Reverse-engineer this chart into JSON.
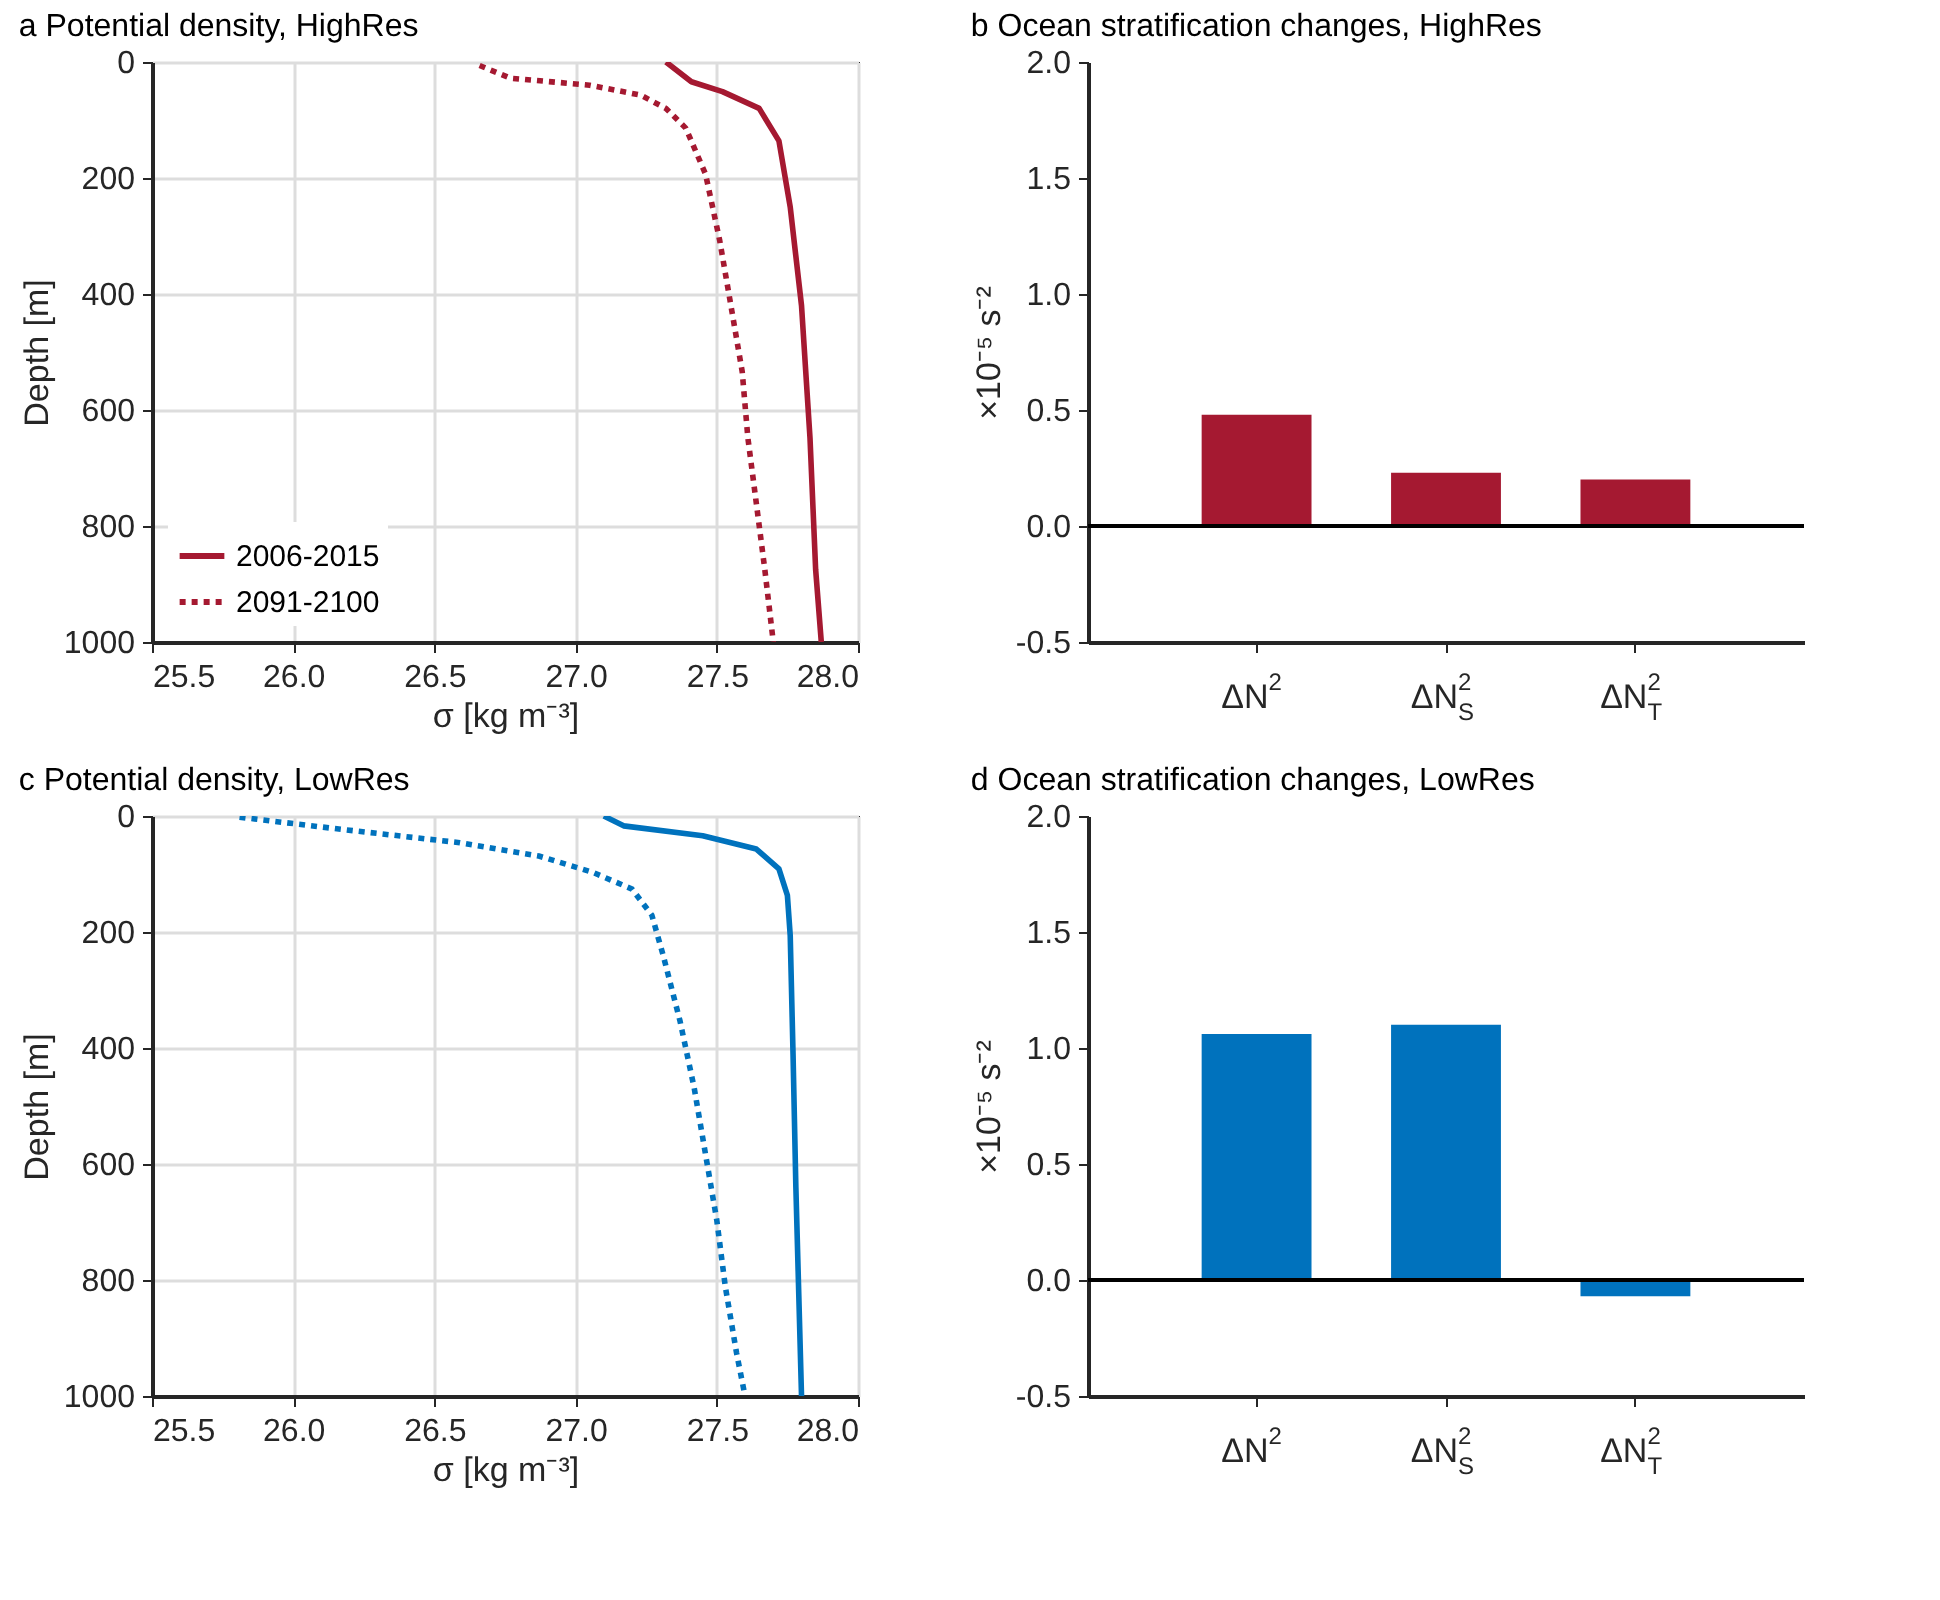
{
  "chart_data": [
    {
      "type": "line",
      "title": "a Potential density, HighRes",
      "xlabel": "σ [kg m⁻³]",
      "ylabel": "Depth [m]",
      "xlim": [
        25.5,
        28
      ],
      "xticks": [
        25.5,
        {
          "value": 26,
          "label": "26.0"
        },
        26.5,
        {
          "value": 27,
          "label": "27.0"
        },
        27.5,
        {
          "value": 28,
          "label": "28.0"
        }
      ],
      "ylim": [
        1000,
        0
      ],
      "yticks": [
        0,
        200,
        400,
        600,
        800,
        1000
      ],
      "grid": true,
      "legend": "bottom left",
      "series": [
        {
          "name": "2006-2015",
          "color": "#a51931",
          "line_style": "solid",
          "x": [
            27.32,
            27.41,
            27.52,
            27.65,
            27.72,
            27.76,
            27.8,
            27.83,
            27.85,
            27.87
          ],
          "values": [
            0,
            34,
            51,
            80,
            136,
            250,
            420,
            648,
            875,
            1000
          ]
        },
        {
          "name": "2091-2100",
          "color": "#a51931",
          "line_style": "dotted",
          "x": [
            26.66,
            26.77,
            27.05,
            27.23,
            27.32,
            27.39,
            27.46,
            27.51,
            27.55,
            27.59,
            27.61,
            27.64,
            27.67,
            27.7
          ],
          "values": [
            6,
            28,
            40,
            57,
            80,
            114,
            193,
            307,
            420,
            534,
            648,
            761,
            875,
            1000
          ]
        }
      ]
    },
    {
      "type": "bar",
      "title": "b Ocean stratification changes, HighRes",
      "ylabel": "×10⁻⁵ s⁻²",
      "categories": [
        "ΔN$^{2}$",
        "ΔN$^{2}$$_{S}$",
        "ΔN$^{2}$$_{T}$"
      ],
      "ylim": [
        -0.5,
        2
      ],
      "yticks": [
        {
          "value": -0.5,
          "label": "-0.5"
        },
        {
          "value": 0,
          "label": "0.0"
        },
        0.5,
        {
          "value": 1,
          "label": "1.0"
        },
        1.5,
        {
          "value": 2,
          "label": "2.0"
        }
      ],
      "ref_lines": [
        {
          "axis": "y",
          "value": 0,
          "color": "#000000"
        }
      ],
      "series": [
        {
          "color": "#a51931",
          "values": [
            0.48,
            0.23,
            0.2
          ]
        }
      ]
    },
    {
      "type": "line",
      "title": "c Potential density, LowRes",
      "xlabel": "σ [kg m⁻³]",
      "ylabel": "Depth [m]",
      "xlim": [
        25.5,
        28
      ],
      "xticks": [
        25.5,
        {
          "value": 26,
          "label": "26.0"
        },
        26.5,
        {
          "value": 27,
          "label": "27.0"
        },
        27.5,
        {
          "value": 28,
          "label": "28.0"
        }
      ],
      "ylim": [
        1000,
        0
      ],
      "yticks": [
        0,
        200,
        400,
        600,
        800,
        1000
      ],
      "grid": true,
      "series": [
        {
          "color": "#0072bd",
          "line_style": "solid",
          "x": [
            27.1,
            27.17,
            27.45,
            27.64,
            27.72,
            27.75,
            27.76,
            27.77,
            27.78,
            27.8
          ],
          "values": [
            0,
            17,
            34,
            57,
            91,
            137,
            206,
            411,
            640,
            1000
          ]
        },
        {
          "color": "#0072bd",
          "line_style": "dotted",
          "x": [
            25.81,
            26.17,
            26.59,
            26.87,
            27.06,
            27.2,
            27.27,
            27.31,
            27.37,
            27.42,
            27.46,
            27.5,
            27.53,
            27.57,
            27.6
          ],
          "values": [
            2,
            23,
            46,
            69,
            97,
            126,
            171,
            240,
            354,
            469,
            583,
            697,
            811,
            926,
            1000
          ]
        }
      ]
    },
    {
      "type": "bar",
      "title": "d Ocean stratification changes, LowRes",
      "ylabel": "×10⁻⁵ s⁻²",
      "categories": [
        "ΔN$^{2}$",
        "ΔN$^{2}$$_{S}$",
        "ΔN$^{2}$$_{T}$"
      ],
      "ylim": [
        -0.5,
        2
      ],
      "yticks": [
        {
          "value": -0.5,
          "label": "-0.5"
        },
        {
          "value": 0,
          "label": "0.0"
        },
        0.5,
        {
          "value": 1,
          "label": "1.0"
        },
        1.5,
        {
          "value": 2,
          "label": "2.0"
        }
      ],
      "ref_lines": [
        {
          "axis": "y",
          "value": 0,
          "color": "#000000"
        }
      ],
      "series": [
        {
          "color": "#0072bd",
          "values": [
            1.06,
            1.1,
            -0.07
          ]
        }
      ]
    }
  ]
}
